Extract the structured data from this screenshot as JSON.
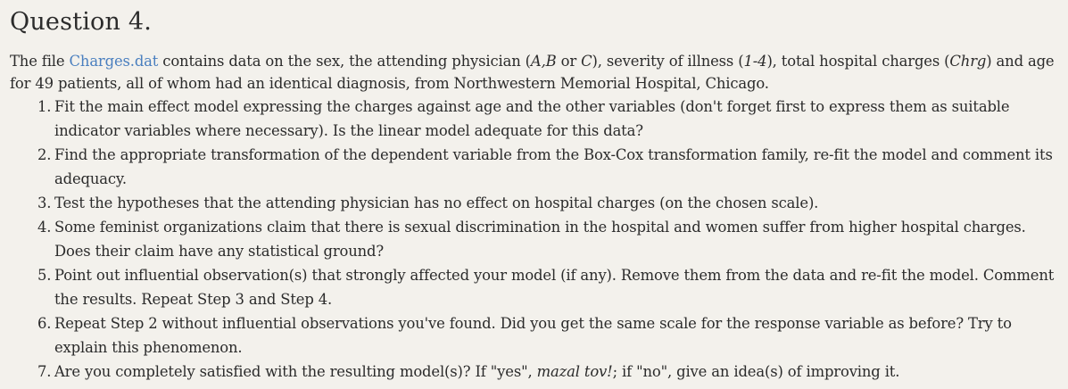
{
  "question": {
    "title": "Question 4."
  },
  "intro": {
    "t1": "The file ",
    "file_link": "Charges.dat",
    "t2": " contains data on the sex, the attending physician (",
    "i1": "A,B",
    "t3": " or ",
    "i2": "C",
    "t4": "), severity of illness (",
    "i3": "1-4",
    "t5": "), total hospital charges (",
    "i4": "Chrg",
    "t6": ") and age for 49 patients, all of whom had an identical diagnosis, from Northwestern Memorial Hospital, Chicago."
  },
  "tasks": [
    {
      "num": "1.",
      "text": "Fit the main effect model expressing the charges against age and the other variables (don't forget first to express them as suitable indicator variables where necessary). Is the linear model adequate for this data?"
    },
    {
      "num": "2.",
      "text": "Find the appropriate transformation of the dependent variable from the Box-Cox transformation family, re-fit the model and comment its adequacy."
    },
    {
      "num": "3.",
      "text": "Test the hypotheses that the attending physician has no effect on hospital charges (on the chosen scale)."
    },
    {
      "num": "4.",
      "text": "Some feminist organizations claim that there is sexual discrimination in the hospital and women suffer from higher hospital charges. Does their claim have any statistical ground?"
    },
    {
      "num": "5.",
      "text": "Point out influential observation(s) that strongly affected your model (if any). Remove them from the data and re-fit the model. Comment the results. Repeat Step 3 and Step 4."
    },
    {
      "num": "6.",
      "text": "Repeat Step 2 without influential observations you've found. Did you get the same scale for the response variable as before? Try to explain this phenomenon."
    },
    {
      "num": "7.",
      "pre": "Are you completely satisfied with the resulting model(s)? If \"yes\", ",
      "ital": "mazal tov!",
      "post": "; if \"no\", give an idea(s) of improving it."
    }
  ]
}
